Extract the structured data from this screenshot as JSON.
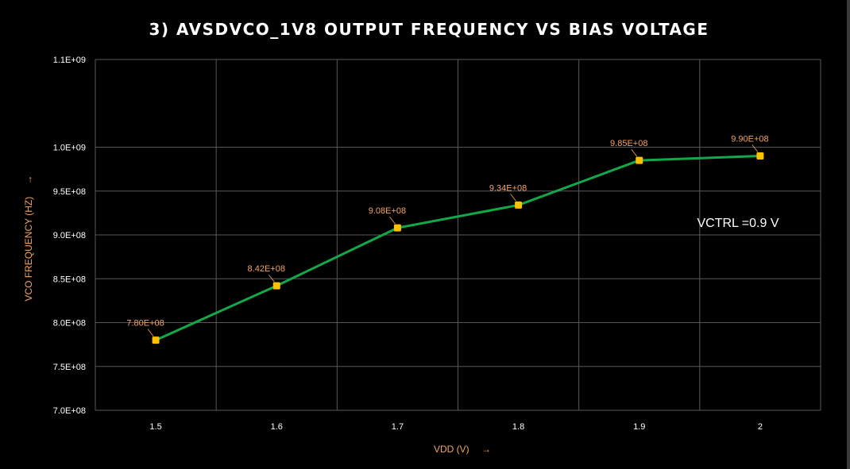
{
  "chart_data": {
    "type": "line",
    "title": "3) AVSDVCO_1V8 OUTPUT FREQUENCY VS BIAS VOLTAGE",
    "xlabel": "VDD (V)",
    "ylabel": "VCO FREQUENCY (HZ)",
    "x_categories": [
      "1.5",
      "1.6",
      "1.7",
      "1.8",
      "1.9",
      "2"
    ],
    "ylim": [
      700000000,
      1100000000
    ],
    "y_ticks": [
      {
        "value": 700000000,
        "label": "7.0E+08"
      },
      {
        "value": 750000000,
        "label": "7.5E+08"
      },
      {
        "value": 800000000,
        "label": "8.0E+08"
      },
      {
        "value": 850000000,
        "label": "8.5E+08"
      },
      {
        "value": 900000000,
        "label": "9.0E+08"
      },
      {
        "value": 950000000,
        "label": "9.5E+08"
      },
      {
        "value": 1000000000,
        "label": "1.0E+09"
      },
      {
        "value": 1100000000,
        "label": "1.1E+09"
      }
    ],
    "series": [
      {
        "values": [
          780000000,
          842000000,
          908000000,
          934000000,
          985000000,
          990000000
        ],
        "data_labels": [
          "7.80E+08",
          "8.42E+08",
          "9.08E+08",
          "9.34E+08",
          "9.85E+08",
          "9.90E+08"
        ]
      }
    ],
    "annotation": "VCTRL =0.9 V",
    "axis_arrow": "→",
    "grid": true,
    "legend": "none",
    "colors": {
      "background": "#000000",
      "title": "#ffffff",
      "line": "#12a84a",
      "marker": "#ffc000",
      "data_label": "#f4a460",
      "axis_label": "#f4a460",
      "tick_label": "#ffffff",
      "grid": "#595959",
      "annotation": "#ffffff"
    }
  }
}
